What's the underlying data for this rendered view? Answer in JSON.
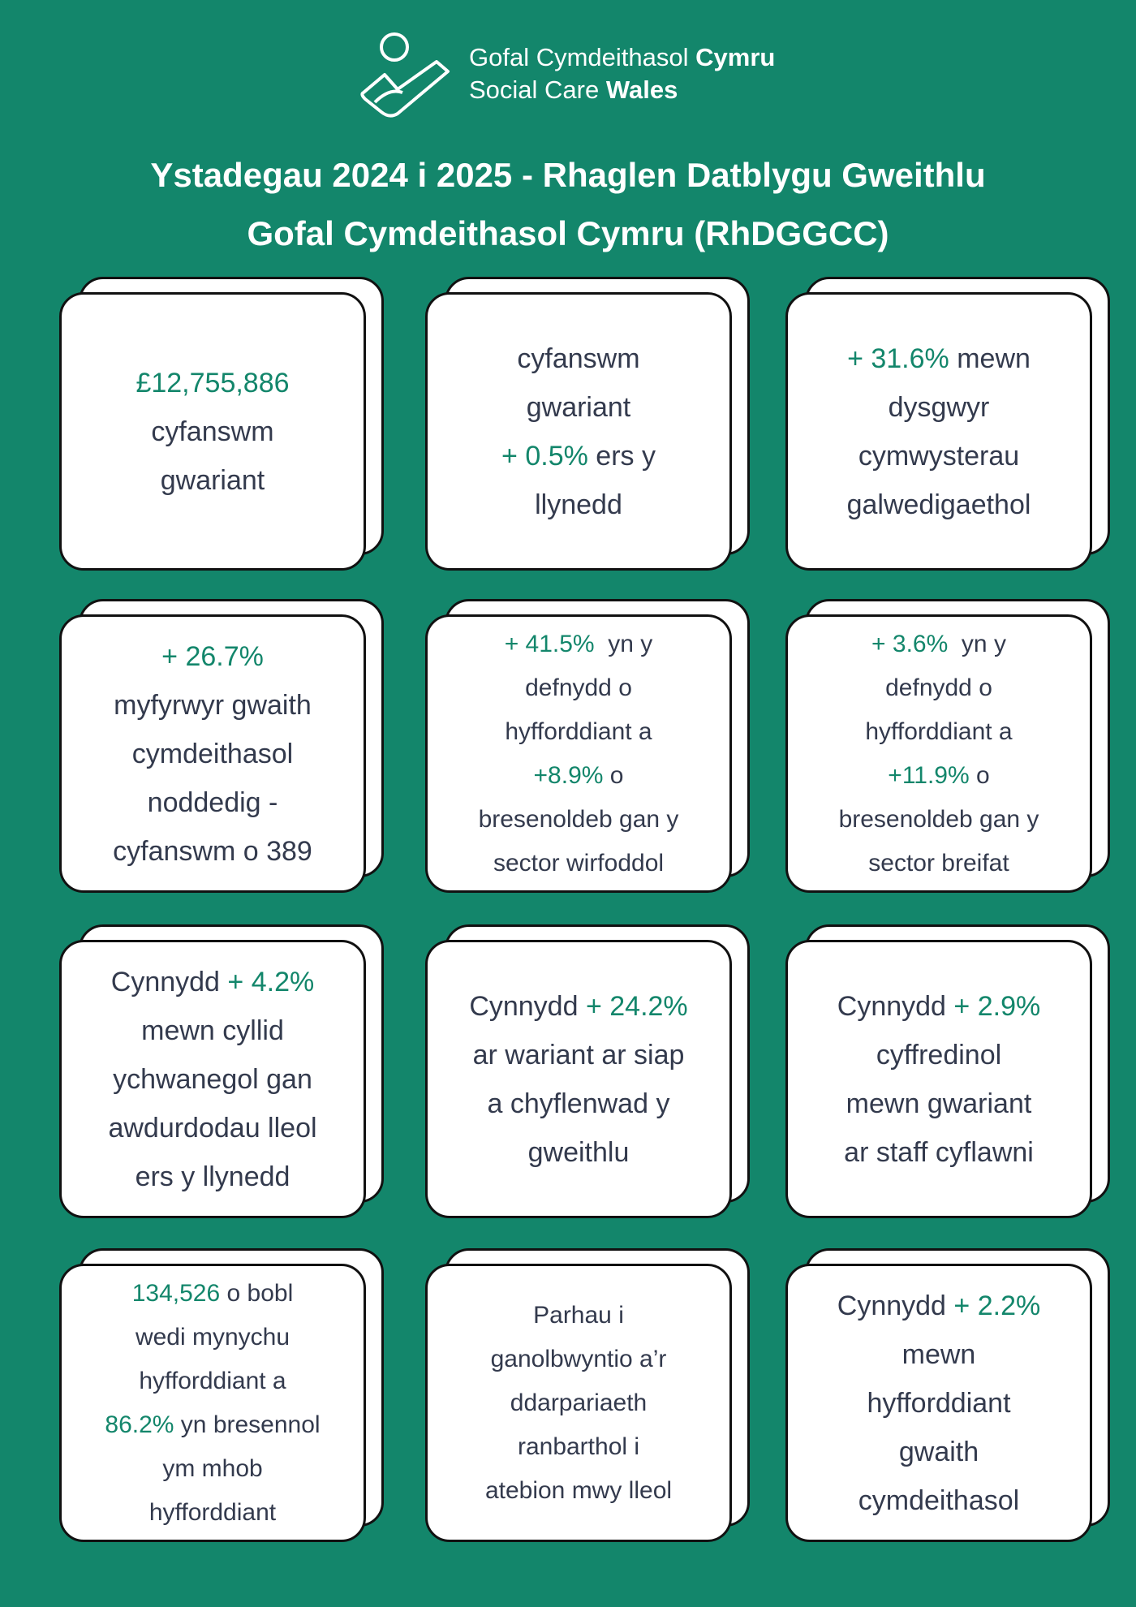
{
  "logo": {
    "line1_regular": "Gofal Cymdeithasol ",
    "line1_bold": "Cymru",
    "line2_regular": "Social Care ",
    "line2_bold": "Wales"
  },
  "title": {
    "line1": "Ystadegau 2024 i 2025 - Rhaglen Datblygu Gweithlu",
    "line2": "Gofal Cymdeithasol Cymru (RhDGGCC)"
  },
  "colors": {
    "background": "#13866b",
    "accent": "#13866b",
    "text": "#333a4d"
  },
  "cards": [
    {
      "lines": [
        [
          {
            "t": "£12,755,886",
            "g": true
          }
        ],
        [
          {
            "t": "cyfanswm"
          }
        ],
        [
          {
            "t": "gwariant"
          }
        ]
      ]
    },
    {
      "lines": [
        [
          {
            "t": "cyfanswm"
          }
        ],
        [
          {
            "t": "gwariant"
          }
        ],
        [
          {
            "t": "+ 0.5%",
            "g": true
          },
          {
            "t": " ers y"
          }
        ],
        [
          {
            "t": "llynedd"
          }
        ]
      ]
    },
    {
      "lines": [
        [
          {
            "t": "+ 31.6%",
            "g": true
          },
          {
            "t": " mewn"
          }
        ],
        [
          {
            "t": "dysgwyr"
          }
        ],
        [
          {
            "t": "cymwysterau"
          }
        ],
        [
          {
            "t": "galwedigaethol"
          }
        ]
      ]
    },
    {
      "lines": [
        [
          {
            "t": "+ 26.7%",
            "g": true
          }
        ],
        [
          {
            "t": "myfyrwyr gwaith"
          }
        ],
        [
          {
            "t": "cymdeithasol"
          }
        ],
        [
          {
            "t": "noddedig -"
          }
        ],
        [
          {
            "t": "cyfanswm o 389"
          }
        ]
      ]
    },
    {
      "small": true,
      "lines": [
        [
          {
            "t": "+ 41.5%",
            "g": true
          },
          {
            "t": "  yn y"
          }
        ],
        [
          {
            "t": "defnydd o"
          }
        ],
        [
          {
            "t": "hyfforddiant a"
          }
        ],
        [
          {
            "t": "+8.9%",
            "g": true
          },
          {
            "t": " o"
          }
        ],
        [
          {
            "t": "bresenoldeb gan y"
          }
        ],
        [
          {
            "t": "sector wirfoddol"
          }
        ]
      ]
    },
    {
      "small": true,
      "lines": [
        [
          {
            "t": "+ 3.6%",
            "g": true
          },
          {
            "t": "  yn y"
          }
        ],
        [
          {
            "t": "defnydd o"
          }
        ],
        [
          {
            "t": "hyfforddiant a"
          }
        ],
        [
          {
            "t": "+11.9%",
            "g": true
          },
          {
            "t": " o"
          }
        ],
        [
          {
            "t": "bresenoldeb gan y"
          }
        ],
        [
          {
            "t": "sector breifat"
          }
        ]
      ]
    },
    {
      "lines": [
        [
          {
            "t": "Cynnydd "
          },
          {
            "t": "+ 4.2%",
            "g": true
          }
        ],
        [
          {
            "t": "mewn cyllid"
          }
        ],
        [
          {
            "t": "ychwanegol gan"
          }
        ],
        [
          {
            "t": "awdurdodau lleol"
          }
        ],
        [
          {
            "t": "ers y llynedd"
          }
        ]
      ]
    },
    {
      "lines": [
        [
          {
            "t": "Cynnydd "
          },
          {
            "t": "+ 24.2%",
            "g": true
          }
        ],
        [
          {
            "t": "ar wariant ar siap"
          }
        ],
        [
          {
            "t": "a chyflenwad y"
          }
        ],
        [
          {
            "t": "gweithlu"
          }
        ]
      ]
    },
    {
      "lines": [
        [
          {
            "t": "Cynnydd "
          },
          {
            "t": "+ 2.9%",
            "g": true
          }
        ],
        [
          {
            "t": "cyffredinol"
          }
        ],
        [
          {
            "t": "mewn gwariant"
          }
        ],
        [
          {
            "t": "ar staff cyflawni"
          }
        ]
      ]
    },
    {
      "small": true,
      "lines": [
        [
          {
            "t": "134,526",
            "g": true
          },
          {
            "t": " o bobl"
          }
        ],
        [
          {
            "t": "wedi mynychu"
          }
        ],
        [
          {
            "t": "hyfforddiant a"
          }
        ],
        [
          {
            "t": "86.2%",
            "g": true
          },
          {
            "t": " yn bresennol"
          }
        ],
        [
          {
            "t": "ym mhob"
          }
        ],
        [
          {
            "t": "hyfforddiant"
          }
        ]
      ]
    },
    {
      "small": true,
      "lines": [
        [
          {
            "t": "Parhau i"
          }
        ],
        [
          {
            "t": "ganolbwyntio a’r"
          }
        ],
        [
          {
            "t": "ddarpariaeth"
          }
        ],
        [
          {
            "t": "ranbarthol i"
          }
        ],
        [
          {
            "t": "atebion mwy lleol"
          }
        ]
      ]
    },
    {
      "lines": [
        [
          {
            "t": "Cynnydd "
          },
          {
            "t": "+ 2.2%",
            "g": true
          }
        ],
        [
          {
            "t": "mewn"
          }
        ],
        [
          {
            "t": "hyfforddiant"
          }
        ],
        [
          {
            "t": "gwaith"
          }
        ],
        [
          {
            "t": "cymdeithasol"
          }
        ]
      ]
    }
  ]
}
